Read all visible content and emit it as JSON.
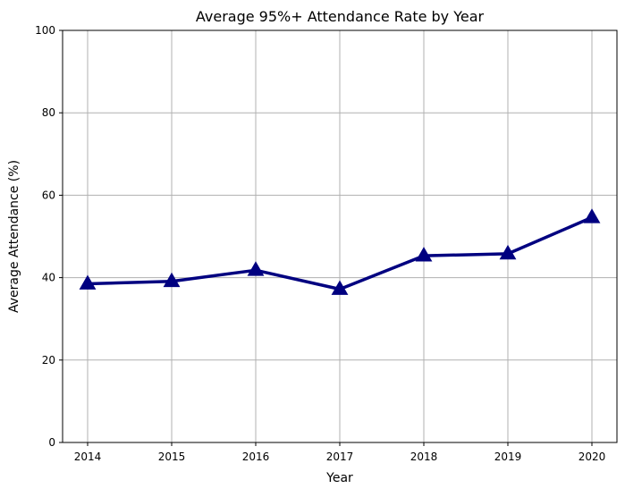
{
  "chart_data": {
    "type": "line",
    "title": "Average 95%+ Attendance Rate by Year",
    "xlabel": "Year",
    "ylabel": "Average Attendance (%)",
    "ylim": [
      0,
      100
    ],
    "yticks": [
      0,
      20,
      40,
      60,
      80,
      100
    ],
    "x": [
      "2014",
      "2015",
      "2016",
      "2017",
      "2018",
      "2019",
      "2020"
    ],
    "series": [
      {
        "values": [
          38.5,
          39.1,
          41.8,
          37.2,
          45.3,
          45.8,
          54.6
        ],
        "color": "#000080",
        "marker": "triangle"
      }
    ],
    "grid": true,
    "legend": "none"
  }
}
